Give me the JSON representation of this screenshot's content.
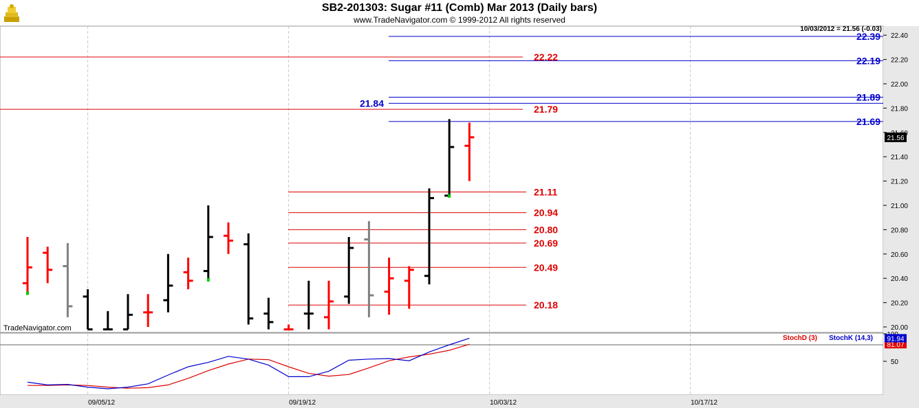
{
  "header": {
    "title": "SB2-201303:  Sugar #11 (Comb) Mar 2013  (Daily bars)",
    "subtitle": "www.TradeNavigator.com © 1999-2012 All rights reserved",
    "logo_icon": "treasure-chest-icon"
  },
  "chart_data": [
    {
      "type": "ohlc",
      "panel": "price",
      "quote_label": "10/03/2012 = 21.56 (-0.03)",
      "last_price_label": "21.56",
      "watermark": "TradeNavigator.com",
      "ylim": [
        19.98,
        22.48
      ],
      "yticks": [
        "20.00",
        "20.20",
        "20.40",
        "20.60",
        "20.80",
        "21.00",
        "21.20",
        "21.40",
        "21.60",
        "21.80",
        "22.00",
        "22.20",
        "22.40"
      ],
      "x_labels": [
        {
          "index": 3,
          "label": "09/05/12"
        },
        {
          "index": 13,
          "label": "09/19/12"
        },
        {
          "index": 23,
          "label": "10/03/12"
        },
        {
          "index": 33,
          "label": "10/17/12"
        }
      ],
      "colors": {
        "up": "#000000",
        "down": "#ff0000",
        "neutral": "#808080",
        "stop_dot": "#00cc00"
      },
      "bars": [
        {
          "o": 20.36,
          "h": 20.74,
          "l": 20.27,
          "c": 20.49,
          "color": "down",
          "dot": 20.28
        },
        {
          "o": 20.61,
          "h": 20.66,
          "l": 20.36,
          "c": 20.47,
          "color": "down"
        },
        {
          "o": 20.5,
          "h": 20.69,
          "l": 20.08,
          "c": 20.17,
          "color": "neutral"
        },
        {
          "o": 20.25,
          "h": 20.31,
          "l": 19.98,
          "c": 19.98,
          "color": "up"
        },
        {
          "o": 19.98,
          "h": 20.13,
          "l": 19.98,
          "c": 19.98,
          "color": "up"
        },
        {
          "o": 19.98,
          "h": 20.27,
          "l": 19.98,
          "c": 20.1,
          "color": "up"
        },
        {
          "o": 20.12,
          "h": 20.27,
          "l": 20.0,
          "c": 20.12,
          "color": "down"
        },
        {
          "o": 20.22,
          "h": 20.6,
          "l": 20.12,
          "c": 20.34,
          "color": "up"
        },
        {
          "o": 20.45,
          "h": 20.57,
          "l": 20.31,
          "c": 20.38,
          "color": "down"
        },
        {
          "o": 20.46,
          "h": 21.0,
          "l": 20.38,
          "c": 20.74,
          "color": "up",
          "dot": 20.39
        },
        {
          "o": 20.75,
          "h": 20.86,
          "l": 20.6,
          "c": 20.71,
          "color": "down"
        },
        {
          "o": 20.68,
          "h": 20.77,
          "l": 20.02,
          "c": 20.07,
          "color": "up"
        },
        {
          "o": 20.11,
          "h": 20.24,
          "l": 19.98,
          "c": 20.04,
          "color": "up"
        },
        {
          "o": 19.98,
          "h": 20.02,
          "l": 19.98,
          "c": 19.98,
          "color": "down"
        },
        {
          "o": 20.11,
          "h": 20.38,
          "l": 19.98,
          "c": 20.11,
          "color": "up"
        },
        {
          "o": 20.08,
          "h": 20.38,
          "l": 19.98,
          "c": 20.21,
          "color": "down"
        },
        {
          "o": 20.25,
          "h": 20.74,
          "l": 20.19,
          "c": 20.65,
          "color": "up"
        },
        {
          "o": 20.72,
          "h": 20.87,
          "l": 20.08,
          "c": 20.26,
          "color": "neutral"
        },
        {
          "o": 20.29,
          "h": 20.57,
          "l": 20.1,
          "c": 20.4,
          "color": "down"
        },
        {
          "o": 20.38,
          "h": 20.5,
          "l": 20.15,
          "c": 20.47,
          "color": "down"
        },
        {
          "o": 20.42,
          "h": 21.14,
          "l": 20.35,
          "c": 21.06,
          "color": "up"
        },
        {
          "o": 21.08,
          "h": 21.71,
          "l": 21.07,
          "c": 21.48,
          "color": "up",
          "dot": 21.08
        },
        {
          "o": 21.49,
          "h": 21.68,
          "l": 21.2,
          "c": 21.56,
          "color": "down"
        }
      ],
      "levels": [
        {
          "value": 22.39,
          "label": "22.39",
          "color": "#0000cc",
          "kind": "projection"
        },
        {
          "value": 22.19,
          "label": "22.19",
          "color": "#0000cc",
          "kind": "projection"
        },
        {
          "value": 21.89,
          "label": "21.89",
          "color": "#0000cc",
          "kind": "projection"
        },
        {
          "value": 21.84,
          "label": "21.84",
          "color": "#0000cc",
          "kind": "projection-left"
        },
        {
          "value": 21.69,
          "label": "21.69",
          "color": "#0000cc",
          "kind": "projection"
        },
        {
          "value": 22.22,
          "label": "22.22",
          "color": "#dd0000",
          "kind": "full"
        },
        {
          "value": 21.79,
          "label": "21.79",
          "color": "#dd0000",
          "kind": "full"
        },
        {
          "value": 21.11,
          "label": "21.11",
          "color": "#dd0000",
          "kind": "retrace"
        },
        {
          "value": 20.94,
          "label": "20.94",
          "color": "#dd0000",
          "kind": "retrace"
        },
        {
          "value": 20.8,
          "label": "20.80",
          "color": "#dd0000",
          "kind": "retrace"
        },
        {
          "value": 20.69,
          "label": "20.69",
          "color": "#dd0000",
          "kind": "retrace"
        },
        {
          "value": 20.49,
          "label": "20.49",
          "color": "#dd0000",
          "kind": "retrace"
        },
        {
          "value": 20.18,
          "label": "20.18",
          "color": "#dd0000",
          "kind": "retrace"
        }
      ]
    },
    {
      "type": "line",
      "panel": "stochastic",
      "ylim": [
        0,
        100
      ],
      "yticks": [
        "50",
        "100"
      ],
      "reference_line": 80,
      "legend": [
        {
          "name": "StochD (3)",
          "color": "#dd0000"
        },
        {
          "name": "StochK (14,3)",
          "color": "#0000cc"
        }
      ],
      "series": [
        {
          "name": "StochD (3)",
          "color": "#dd0000",
          "last_label": "81.07",
          "values": [
            6,
            6,
            7,
            6,
            3,
            1,
            2,
            7,
            19,
            33,
            45,
            54,
            53,
            40,
            28,
            23,
            26,
            38,
            51,
            58,
            63,
            70,
            81
          ]
        },
        {
          "name": "StochK (14,3)",
          "color": "#0000cc",
          "last_label": "91.94",
          "values": [
            12,
            7,
            8,
            3,
            0,
            3,
            9,
            25,
            40,
            48,
            59,
            54,
            43,
            22,
            22,
            32,
            52,
            54,
            55,
            51,
            67,
            80,
            92
          ]
        }
      ]
    }
  ]
}
